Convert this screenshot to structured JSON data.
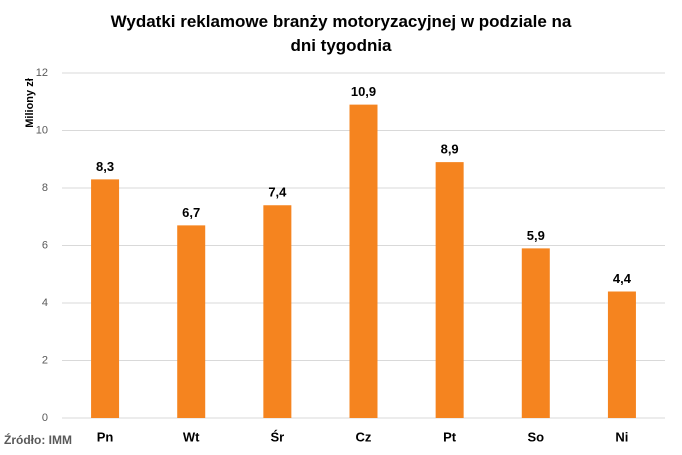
{
  "chart_data": {
    "type": "bar",
    "title": "Wydatki reklamowe branży motoryzacyjnej w podziale na dni tygodnia",
    "y_label": "Miliony zł",
    "source": "Źródło: IMM",
    "categories": [
      "Pn",
      "Wt",
      "Śr",
      "Cz",
      "Pt",
      "So",
      "Ni"
    ],
    "values": [
      8.3,
      6.7,
      7.4,
      10.9,
      8.9,
      5.9,
      4.4
    ],
    "value_labels": [
      "8,3",
      "6,7",
      "7,4",
      "10,9",
      "8,9",
      "5,9",
      "4,4"
    ],
    "color": "#f5841f",
    "ylim": [
      0,
      12
    ],
    "yticks": [
      0,
      2,
      4,
      6,
      8,
      10,
      12
    ],
    "grid": true
  }
}
